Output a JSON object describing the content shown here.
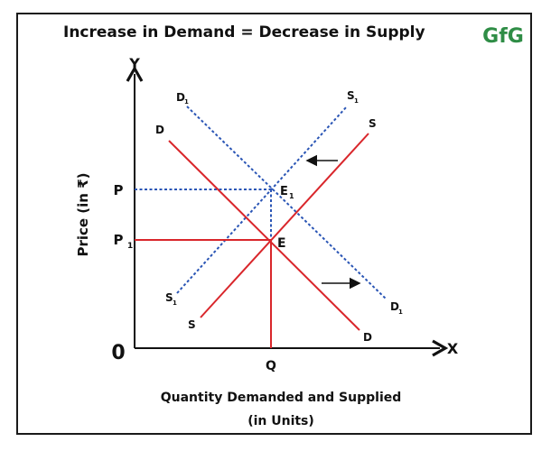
{
  "title": "Increase in Demand = Decrease in Supply",
  "logo_text": "GfG",
  "y_axis_label": "Price (in ₹)",
  "x_axis_label_line1": "Quantity Demanded and Supplied",
  "x_axis_label_line2": "(in Units)",
  "axes": {
    "y": "Y",
    "x": "X",
    "origin": "0"
  },
  "prices": {
    "upper": "P",
    "lower_main": "P",
    "lower_sub": "1"
  },
  "quantity": "Q",
  "points": {
    "main": "E",
    "shifted_main": "E",
    "shifted_sub": "1"
  },
  "curves": {
    "demand": "D",
    "supply": "S",
    "demand_new_main": "D",
    "supply_new_main": "S",
    "new_sub": "1"
  },
  "colors": {
    "original": "#d9262b",
    "shifted": "#2a55b5",
    "axis": "#111111",
    "logo": "#2f8d46"
  }
}
